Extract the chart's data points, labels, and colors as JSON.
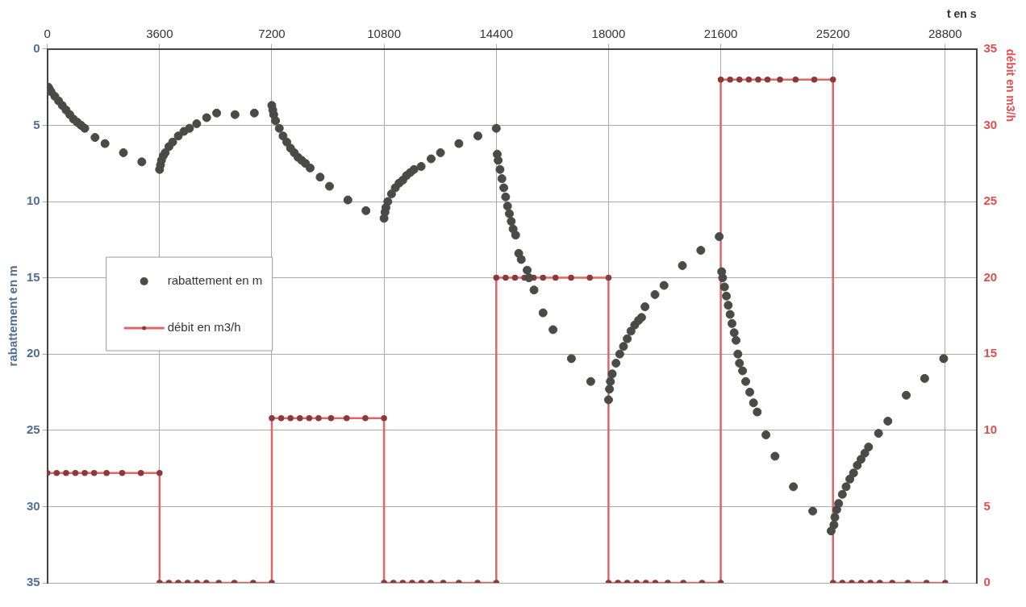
{
  "chart_data": {
    "type": "scatter",
    "xlabel": "t en s",
    "ylabel": "rabattement en m",
    "y2label": "débit en m3/h",
    "xlim": [
      0,
      29800
    ],
    "xticks": [
      0,
      3600,
      7200,
      10800,
      14400,
      18000,
      21600,
      25200,
      28800
    ],
    "ylim": [
      35,
      0
    ],
    "yticks": [
      0,
      5,
      10,
      15,
      20,
      25,
      30,
      35
    ],
    "y2lim": [
      0,
      35
    ],
    "y2ticks": [
      0,
      5,
      10,
      15,
      20,
      25,
      30,
      35
    ],
    "grid": true,
    "legend": "left",
    "marker": "circle",
    "series": [
      {
        "name": "rabattement en m",
        "color": "#4a4a48",
        "x": [
          30,
          60,
          120,
          240,
          360,
          480,
          600,
          720,
          840,
          960,
          1080,
          1200,
          1530,
          1850,
          2440,
          3030,
          3600,
          3630,
          3660,
          3720,
          3780,
          3900,
          4020,
          4200,
          4380,
          4560,
          4790,
          5110,
          5430,
          6020,
          6640,
          7200,
          7230,
          7260,
          7320,
          7440,
          7560,
          7680,
          7800,
          7920,
          8040,
          8160,
          8280,
          8430,
          8750,
          9050,
          9640,
          10220,
          10800,
          10830,
          10860,
          10920,
          11040,
          11160,
          11280,
          11400,
          11520,
          11640,
          11760,
          11990,
          12310,
          12610,
          13200,
          13810,
          14400,
          14430,
          14460,
          14520,
          14580,
          14640,
          14700,
          14760,
          14820,
          14880,
          14940,
          15020,
          15120,
          15200,
          15390,
          15450,
          15610,
          15900,
          16220,
          16810,
          17430,
          18000,
          18030,
          18060,
          18120,
          18240,
          18360,
          18480,
          18600,
          18720,
          18840,
          18960,
          19060,
          19170,
          19490,
          19780,
          20370,
          20960,
          21550,
          21630,
          21660,
          21720,
          21780,
          21840,
          21900,
          21960,
          22030,
          22090,
          22150,
          22200,
          22300,
          22400,
          22530,
          22650,
          22770,
          23050,
          23340,
          23930,
          24550,
          25140,
          25230,
          25260,
          25320,
          25380,
          25500,
          25620,
          25740,
          25860,
          25980,
          26100,
          26220,
          26340,
          26660,
          26960,
          27550,
          28140,
          28750
        ],
        "values": [
          2.5,
          2.6,
          2.8,
          3.1,
          3.4,
          3.7,
          4.0,
          4.3,
          4.6,
          4.8,
          5.0,
          5.2,
          5.8,
          6.2,
          6.8,
          7.4,
          7.9,
          7.6,
          7.3,
          7.0,
          6.8,
          6.4,
          6.1,
          5.7,
          5.4,
          5.2,
          4.9,
          4.5,
          4.2,
          4.3,
          4.2,
          3.7,
          4.0,
          4.3,
          4.7,
          5.2,
          5.7,
          6.1,
          6.5,
          6.8,
          7.1,
          7.3,
          7.5,
          7.8,
          8.4,
          9.0,
          9.9,
          10.6,
          11.1,
          10.7,
          10.4,
          10.0,
          9.5,
          9.1,
          8.8,
          8.6,
          8.3,
          8.1,
          7.9,
          7.7,
          7.2,
          6.8,
          6.2,
          5.7,
          5.2,
          6.9,
          7.3,
          7.9,
          8.5,
          9.1,
          9.7,
          10.3,
          10.8,
          11.3,
          11.8,
          12.2,
          13.4,
          13.8,
          14.5,
          15.0,
          15.8,
          17.3,
          18.4,
          20.3,
          21.8,
          23.0,
          22.3,
          21.8,
          21.3,
          20.6,
          20.0,
          19.5,
          19.0,
          18.5,
          18.1,
          17.8,
          17.6,
          16.9,
          16.1,
          15.5,
          14.2,
          13.2,
          12.3,
          14.6,
          15.0,
          15.6,
          16.2,
          16.8,
          17.4,
          18.0,
          18.6,
          19.1,
          20.0,
          20.6,
          21.1,
          21.8,
          22.5,
          23.2,
          23.8,
          25.3,
          26.7,
          28.7,
          30.3,
          31.6,
          31.2,
          30.7,
          30.2,
          29.8,
          29.2,
          28.7,
          28.2,
          27.8,
          27.3,
          26.9,
          26.5,
          26.1,
          25.2,
          24.4,
          22.7,
          21.6,
          20.3
        ]
      },
      {
        "name": "débit en m3/h",
        "type": "line",
        "axis": "y2",
        "color": "#e06666",
        "x": [
          0,
          300,
          600,
          900,
          1200,
          1500,
          1900,
          2400,
          3000,
          3600,
          3600,
          3900,
          4200,
          4500,
          4800,
          5100,
          5500,
          6000,
          6600,
          7200,
          7200,
          7500,
          7800,
          8100,
          8400,
          8700,
          9100,
          9600,
          10200,
          10800,
          10800,
          11100,
          11400,
          11700,
          12000,
          12300,
          12700,
          13200,
          13800,
          14400,
          14400,
          14700,
          15000,
          15300,
          15600,
          15900,
          16300,
          16800,
          17400,
          18000,
          18000,
          18300,
          18600,
          18900,
          19200,
          19500,
          19900,
          20400,
          21000,
          21600,
          21600,
          21900,
          22200,
          22500,
          22800,
          23100,
          23500,
          24000,
          24600,
          25200,
          25200,
          25500,
          25800,
          26100,
          26400,
          26700,
          27100,
          27600,
          28200,
          28800
        ],
        "values": [
          7.2,
          7.2,
          7.2,
          7.2,
          7.2,
          7.2,
          7.2,
          7.2,
          7.2,
          7.2,
          0,
          0,
          0,
          0,
          0,
          0,
          0,
          0,
          0,
          0,
          10.8,
          10.8,
          10.8,
          10.8,
          10.8,
          10.8,
          10.8,
          10.8,
          10.8,
          10.8,
          0,
          0,
          0,
          0,
          0,
          0,
          0,
          0,
          0,
          0,
          20,
          20,
          20,
          20,
          20,
          20,
          20,
          20,
          20,
          20,
          0,
          0,
          0,
          0,
          0,
          0,
          0,
          0,
          0,
          0,
          33,
          33,
          33,
          33,
          33,
          33,
          33,
          33,
          33,
          33,
          0,
          0,
          0,
          0,
          0,
          0,
          0,
          0,
          0,
          0
        ]
      }
    ]
  }
}
